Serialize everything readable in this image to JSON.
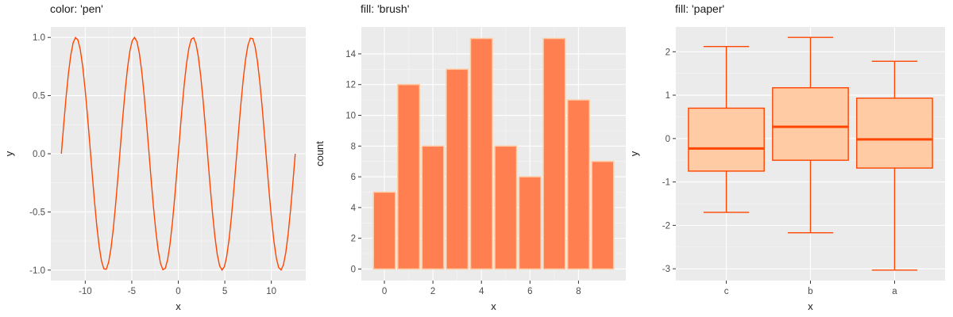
{
  "colors": {
    "panel_bg": "#EBEBEB",
    "grid_major": "#FFFFFF",
    "pen": "#FF4500",
    "brush": "#FF7F50",
    "brush_outline": "#FFCBA4",
    "paper": "#FFCBA4",
    "paper_outline": "#FF4500"
  },
  "chart_data": [
    {
      "type": "line",
      "title": "color: 'pen'",
      "xlabel": "x",
      "ylabel": "y",
      "function": "y = sin(x)",
      "x_range": [
        -12.566,
        12.566
      ],
      "xlim": [
        -12.566,
        12.566
      ],
      "ylim": [
        -1,
        1
      ],
      "x_ticks": [
        -10,
        -5,
        0,
        5,
        10
      ],
      "y_ticks": [
        -1,
        -0.5,
        0,
        0.5,
        1
      ],
      "x_tick_labels": [
        "-10",
        "-5",
        "0",
        "5",
        "10"
      ],
      "y_tick_labels": [
        "-1.0",
        "-0.5",
        "0.0",
        "0.5",
        "1.0"
      ],
      "grid": true
    },
    {
      "type": "bar",
      "title": "fill: 'brush'",
      "xlabel": "x",
      "ylabel": "count",
      "categories": [
        0,
        1,
        2,
        3,
        4,
        5,
        6,
        7,
        8,
        9
      ],
      "values": [
        5,
        12,
        8,
        13,
        15,
        8,
        6,
        15,
        11,
        7
      ],
      "xlim": [
        -0.5,
        9.5
      ],
      "ylim": [
        0,
        15
      ],
      "x_ticks": [
        0,
        2,
        4,
        6,
        8
      ],
      "y_ticks": [
        0,
        2,
        4,
        6,
        8,
        10,
        12,
        14
      ],
      "x_tick_labels": [
        "0",
        "2",
        "4",
        "6",
        "8"
      ],
      "y_tick_labels": [
        "0",
        "2",
        "4",
        "6",
        "8",
        "10",
        "12",
        "14"
      ],
      "grid": true
    },
    {
      "type": "box",
      "title": "fill: 'paper'",
      "xlabel": "x",
      "ylabel": "y",
      "categories": [
        "c",
        "b",
        "a"
      ],
      "boxes": [
        {
          "name": "c",
          "whisker_low": -1.7,
          "q1": -0.75,
          "median": -0.23,
          "q3": 0.7,
          "whisker_high": 2.12
        },
        {
          "name": "b",
          "whisker_low": -2.17,
          "q1": -0.5,
          "median": 0.27,
          "q3": 1.17,
          "whisker_high": 2.33
        },
        {
          "name": "a",
          "whisker_low": -3.03,
          "q1": -0.68,
          "median": -0.02,
          "q3": 0.93,
          "whisker_high": 1.78
        }
      ],
      "ylim": [
        -3.03,
        2.33
      ],
      "y_ticks": [
        -3,
        -2,
        -1,
        0,
        1,
        2
      ],
      "y_tick_labels": [
        "-3",
        "-2",
        "-1",
        "0",
        "1",
        "2"
      ],
      "grid": true
    }
  ]
}
